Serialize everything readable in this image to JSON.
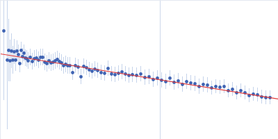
{
  "chart_data": {
    "type": "scatter",
    "x": [
      5,
      10,
      12,
      14,
      16,
      18,
      20,
      22,
      24,
      26,
      28,
      30,
      32,
      34,
      36,
      38,
      40,
      43,
      46,
      49,
      52,
      55,
      58,
      61,
      64,
      67,
      70,
      73,
      76,
      79,
      82,
      85,
      88,
      91,
      94,
      97,
      100,
      104,
      108,
      112,
      116,
      120,
      124,
      128,
      132,
      136,
      140,
      145,
      150,
      155,
      160,
      165,
      170,
      175,
      180,
      185,
      190,
      196,
      202,
      208,
      214,
      220,
      226,
      232,
      238,
      244,
      250,
      256,
      262,
      268,
      274,
      280,
      286,
      292,
      298,
      304,
      310,
      316,
      322,
      328,
      334,
      340,
      346,
      352,
      358,
      364,
      370,
      376,
      382,
      388
    ],
    "values": [
      156,
      114,
      128,
      113,
      127,
      114,
      126,
      114,
      127,
      122,
      109,
      128,
      119,
      124,
      117,
      116,
      113,
      118,
      112,
      116,
      117,
      114,
      118,
      118,
      111,
      109,
      113,
      110,
      111,
      113,
      115,
      112,
      110,
      106,
      108,
      106,
      106,
      96,
      106,
      104,
      90,
      105,
      103,
      100,
      98,
      101,
      99,
      96,
      95,
      102,
      94,
      93,
      95,
      97,
      94,
      92,
      93,
      92,
      94,
      89,
      90,
      86,
      88,
      85,
      83,
      88,
      82,
      84,
      79,
      83,
      81,
      80,
      76,
      79,
      78,
      74,
      76,
      75,
      76,
      70,
      72,
      67,
      70,
      67,
      63,
      65,
      64,
      61,
      60,
      60
    ],
    "errors": {
      "color": "#c6d4eb",
      "values": [
        100,
        100,
        45,
        30,
        25,
        20,
        18,
        16,
        15,
        14,
        13,
        12,
        12,
        12,
        12,
        12,
        12,
        12,
        12,
        12,
        12,
        12,
        12,
        12,
        12,
        12,
        12,
        12,
        12,
        12,
        12,
        12,
        12,
        12,
        12,
        12,
        12,
        11,
        11,
        11,
        11,
        11,
        11,
        11,
        11,
        11,
        11,
        11,
        11,
        11,
        11,
        11,
        11,
        11,
        11,
        11,
        11,
        11,
        11,
        11,
        11,
        11,
        11,
        11,
        11,
        11,
        11,
        11,
        11,
        11,
        11,
        11,
        11,
        11,
        11,
        10,
        10,
        10,
        10,
        10,
        10,
        10,
        10,
        10,
        10,
        10,
        10,
        10,
        10,
        10
      ]
    },
    "color": "#3f63b3",
    "marker": "circle",
    "fit": {
      "type": "line",
      "color": "#e03a3a",
      "x": [
        0,
        400
      ],
      "values": [
        123,
        58
      ]
    },
    "reference_x": {
      "value": 230,
      "color": "#cdd8ea"
    },
    "xlim": [
      0,
      400
    ],
    "ylim": [
      0,
      200
    ],
    "xticks": [],
    "yticks": [],
    "grid": false,
    "tick_labels": false
  }
}
